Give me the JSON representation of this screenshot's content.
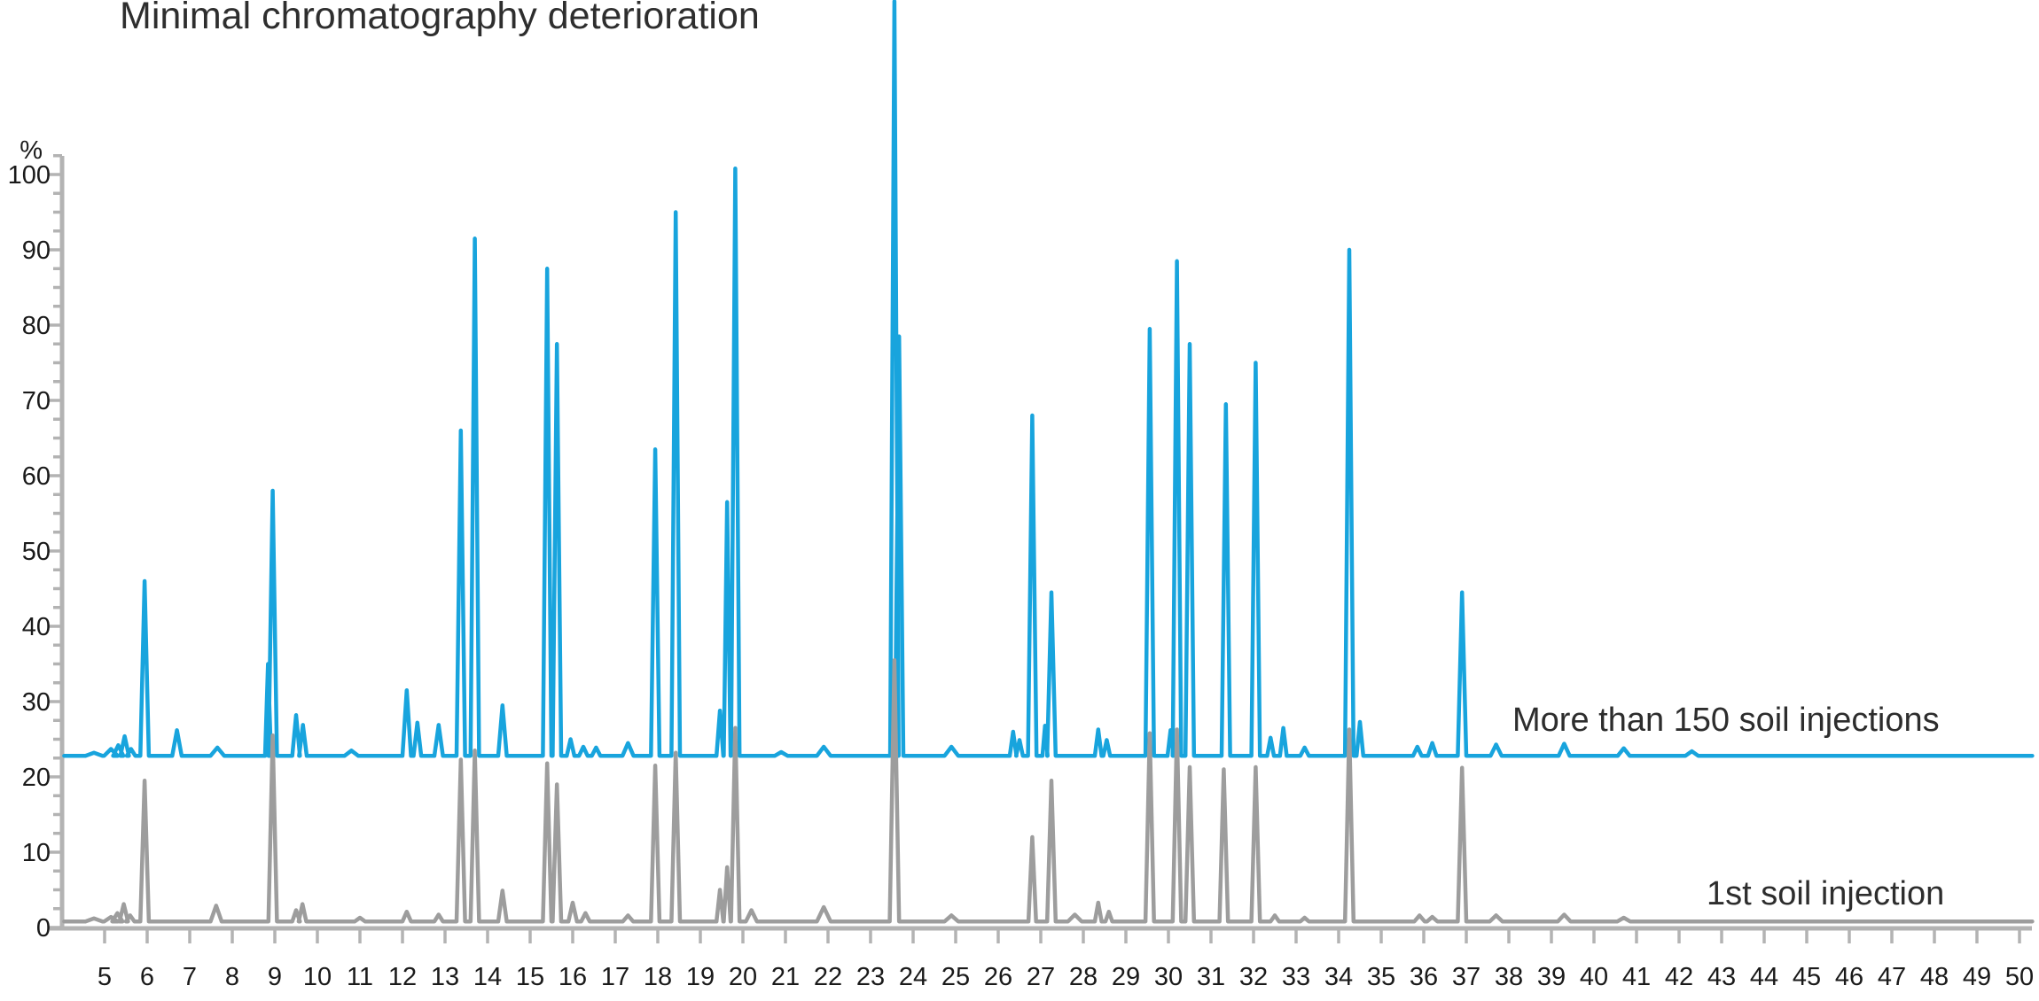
{
  "title": "Minimal chromatography deterioration",
  "chart_data": {
    "type": "line",
    "title": "Minimal chromatography deterioration",
    "xlabel": "",
    "ylabel": "%",
    "grid": false,
    "x_axis": {
      "min": 5,
      "max": 50,
      "tick_step": 1,
      "ticks": [
        5,
        6,
        7,
        8,
        9,
        10,
        11,
        12,
        13,
        14,
        15,
        16,
        17,
        18,
        19,
        20,
        21,
        22,
        23,
        24,
        25,
        26,
        27,
        28,
        29,
        30,
        31,
        32,
        33,
        34,
        35,
        36,
        37,
        38,
        39,
        40,
        41,
        42,
        43,
        44,
        45,
        46,
        47,
        48,
        49,
        50
      ]
    },
    "y_axis": {
      "min": 0,
      "max": 100,
      "unit": "%",
      "minor_step": 2.5,
      "minor_max": 102.5,
      "ticks": [
        0,
        10,
        20,
        30,
        40,
        50,
        60,
        70,
        80,
        90,
        100
      ]
    },
    "axis_color": "#b3b3b3",
    "legend_position": "right-inline",
    "series": [
      {
        "name": "More than 150 soil injections",
        "color": "#18a4dd",
        "baseline": 22.8,
        "x_start": 4.05,
        "x_end": 50.3,
        "note": "peaks = [retention_time, apex_percent, half_width]; apex 123 is clipped at top of image",
        "peaks": [
          [
            4.75,
            23.2,
            0.2
          ],
          [
            5.15,
            23.7,
            0.16
          ],
          [
            5.32,
            24.2,
            0.12
          ],
          [
            5.47,
            25.4,
            0.1
          ],
          [
            5.62,
            23.7,
            0.1
          ],
          [
            5.94,
            46,
            0.1
          ],
          [
            6.7,
            26.2,
            0.11
          ],
          [
            7.65,
            23.9,
            0.16
          ],
          [
            8.84,
            35,
            0.07
          ],
          [
            8.95,
            58,
            0.1
          ],
          [
            9.5,
            28.2,
            0.09
          ],
          [
            9.66,
            26.9,
            0.09
          ],
          [
            10.8,
            23.5,
            0.16
          ],
          [
            12.1,
            31.5,
            0.1
          ],
          [
            12.35,
            27.2,
            0.09
          ],
          [
            12.85,
            26.9,
            0.1
          ],
          [
            13.37,
            66,
            0.1
          ],
          [
            13.7,
            91.5,
            0.1
          ],
          [
            14.35,
            29.5,
            0.1
          ],
          [
            15.4,
            87.5,
            0.1
          ],
          [
            15.63,
            77.5,
            0.1
          ],
          [
            15.95,
            25,
            0.09
          ],
          [
            16.25,
            24,
            0.1
          ],
          [
            16.55,
            23.9,
            0.1
          ],
          [
            17.3,
            24.5,
            0.13
          ],
          [
            17.94,
            63.5,
            0.1
          ],
          [
            18.42,
            95,
            0.1
          ],
          [
            19.46,
            28.8,
            0.08
          ],
          [
            19.63,
            56.5,
            0.08
          ],
          [
            19.82,
            100.8,
            0.1
          ],
          [
            20.9,
            23.3,
            0.15
          ],
          [
            21.9,
            24,
            0.16
          ],
          [
            23.56,
            123,
            0.1
          ],
          [
            23.67,
            78.5,
            0.1
          ],
          [
            24.9,
            24,
            0.16
          ],
          [
            26.35,
            26,
            0.08
          ],
          [
            26.5,
            24.9,
            0.08
          ],
          [
            26.8,
            68,
            0.1
          ],
          [
            27.1,
            26.8,
            0.06
          ],
          [
            27.25,
            44.5,
            0.1
          ],
          [
            28.35,
            26.3,
            0.08
          ],
          [
            28.55,
            24.9,
            0.08
          ],
          [
            29.56,
            79.5,
            0.1
          ],
          [
            30.05,
            26.2,
            0.07
          ],
          [
            30.2,
            88.5,
            0.1
          ],
          [
            30.5,
            77.5,
            0.1
          ],
          [
            31.35,
            69.5,
            0.1
          ],
          [
            32.05,
            75,
            0.1
          ],
          [
            32.4,
            25.2,
            0.08
          ],
          [
            32.7,
            26.5,
            0.08
          ],
          [
            33.2,
            23.9,
            0.1
          ],
          [
            34.25,
            90,
            0.1
          ],
          [
            34.5,
            27.3,
            0.08
          ],
          [
            35.85,
            24,
            0.1
          ],
          [
            36.2,
            24.5,
            0.1
          ],
          [
            36.9,
            44.5,
            0.1
          ],
          [
            37.7,
            24.3,
            0.13
          ],
          [
            39.3,
            24.4,
            0.13
          ],
          [
            40.7,
            23.8,
            0.14
          ],
          [
            42.3,
            23.4,
            0.15
          ]
        ]
      },
      {
        "name": "1st soil injection",
        "color": "#9d9d9d",
        "baseline": 0.8,
        "x_start": 4.05,
        "x_end": 50.3,
        "note": "peaks = [retention_time, apex_percent, half_width]",
        "peaks": [
          [
            4.75,
            1.2,
            0.2
          ],
          [
            5.15,
            1.4,
            0.16
          ],
          [
            5.3,
            1.9,
            0.12
          ],
          [
            5.45,
            3.1,
            0.1
          ],
          [
            5.6,
            1.6,
            0.1
          ],
          [
            5.94,
            19.5,
            0.1
          ],
          [
            7.62,
            2.9,
            0.13
          ],
          [
            8.95,
            25.5,
            0.1
          ],
          [
            9.5,
            2.3,
            0.09
          ],
          [
            9.65,
            3.1,
            0.09
          ],
          [
            11.0,
            1.3,
            0.12
          ],
          [
            12.1,
            2.1,
            0.1
          ],
          [
            12.85,
            1.7,
            0.1
          ],
          [
            13.37,
            22.3,
            0.1
          ],
          [
            13.7,
            23.5,
            0.1
          ],
          [
            14.35,
            4.9,
            0.1
          ],
          [
            15.4,
            21.8,
            0.1
          ],
          [
            15.63,
            19,
            0.1
          ],
          [
            16.0,
            3.3,
            0.1
          ],
          [
            16.3,
            1.9,
            0.1
          ],
          [
            17.3,
            1.6,
            0.12
          ],
          [
            17.94,
            21.5,
            0.1
          ],
          [
            18.42,
            23.2,
            0.1
          ],
          [
            19.46,
            5,
            0.08
          ],
          [
            19.63,
            8,
            0.08
          ],
          [
            19.82,
            26.5,
            0.1
          ],
          [
            20.2,
            2.3,
            0.13
          ],
          [
            21.9,
            2.7,
            0.16
          ],
          [
            23.56,
            35.5,
            0.11
          ],
          [
            24.9,
            1.6,
            0.16
          ],
          [
            26.8,
            12,
            0.09
          ],
          [
            27.25,
            19.5,
            0.1
          ],
          [
            27.8,
            1.7,
            0.16
          ],
          [
            28.35,
            3.3,
            0.08
          ],
          [
            28.6,
            2.1,
            0.08
          ],
          [
            29.56,
            25.8,
            0.1
          ],
          [
            30.2,
            26.3,
            0.1
          ],
          [
            30.5,
            21.3,
            0.1
          ],
          [
            31.3,
            21,
            0.1
          ],
          [
            32.05,
            21.3,
            0.1
          ],
          [
            32.5,
            1.6,
            0.1
          ],
          [
            33.2,
            1.3,
            0.1
          ],
          [
            34.25,
            26.3,
            0.1
          ],
          [
            35.9,
            1.6,
            0.12
          ],
          [
            36.2,
            1.4,
            0.12
          ],
          [
            36.9,
            21.2,
            0.1
          ],
          [
            37.7,
            1.6,
            0.15
          ],
          [
            39.3,
            1.7,
            0.15
          ],
          [
            40.7,
            1.3,
            0.15
          ]
        ]
      }
    ]
  }
}
